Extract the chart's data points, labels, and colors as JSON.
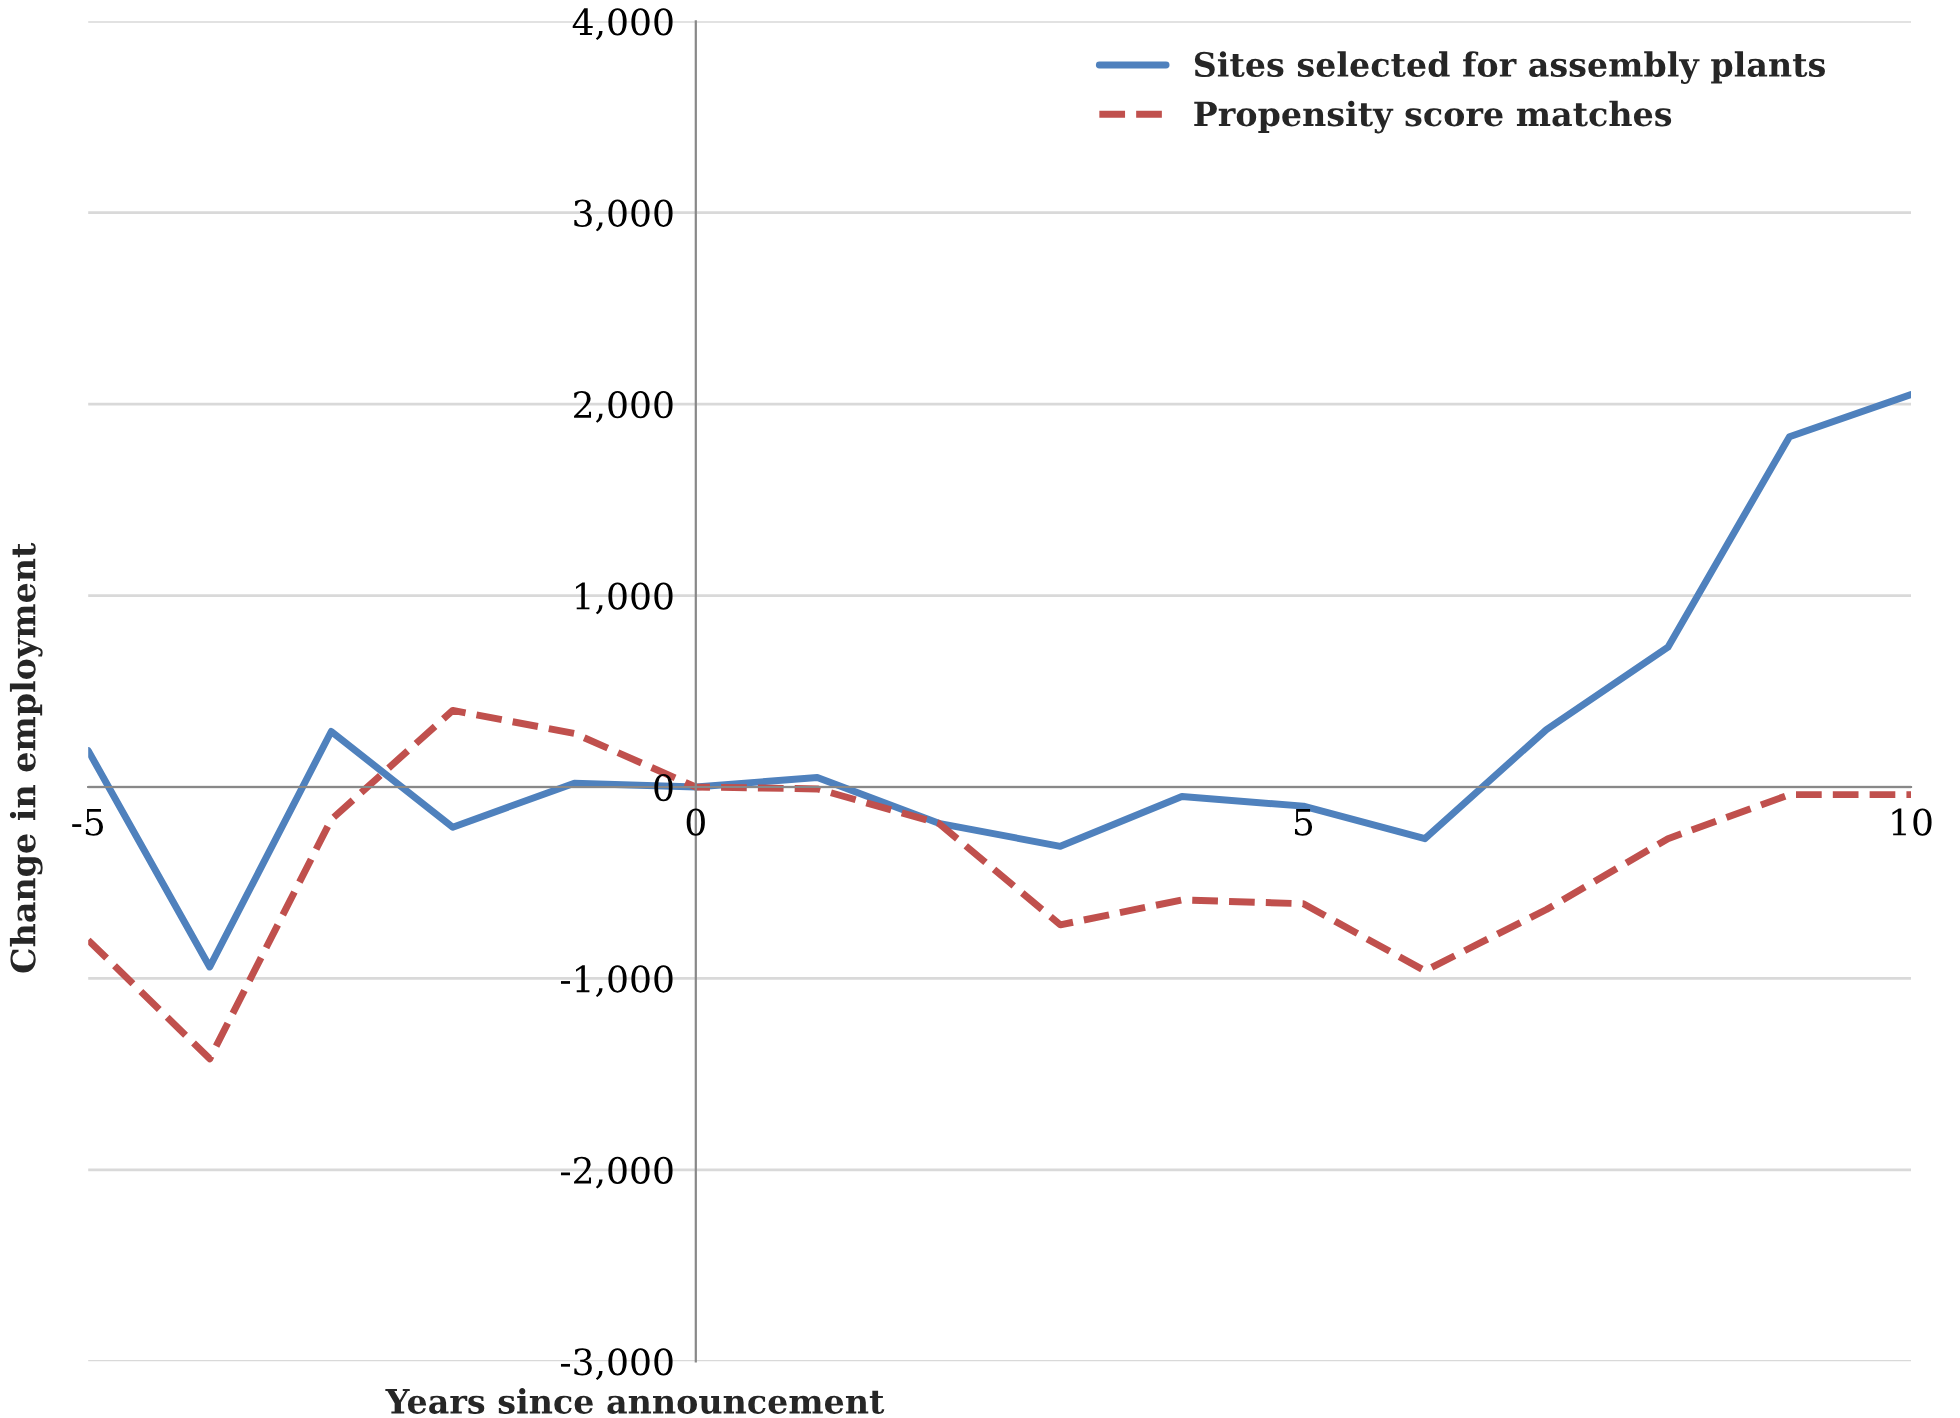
{
  "chart_data": {
    "type": "line",
    "xlabel": "Years since announcement",
    "ylabel": "Change in employment",
    "x": [
      -5,
      -4,
      -3,
      -2,
      -1,
      0,
      1,
      2,
      3,
      4,
      5,
      6,
      7,
      8,
      9,
      10
    ],
    "series": [
      {
        "name": "Sites selected for assembly plants",
        "color": "#4f81bd",
        "line_style": "solid",
        "values": [
          190,
          -940,
          290,
          -210,
          20,
          0,
          50,
          -190,
          -310,
          -50,
          -100,
          -270,
          300,
          730,
          1830,
          2050
        ]
      },
      {
        "name": "Propensity score matches",
        "color": "#c0504d",
        "line_style": "dashed",
        "values": [
          -800,
          -1420,
          -170,
          400,
          280,
          0,
          -10,
          -190,
          -720,
          -590,
          -610,
          -960,
          -640,
          -270,
          -40,
          -40
        ]
      }
    ],
    "xlim": [
      -5,
      10
    ],
    "xticks": [
      -5,
      0,
      5,
      10
    ],
    "ylim": [
      -3000,
      4000
    ],
    "yticks": [
      {
        "value": -3000,
        "label": "-3,000"
      },
      {
        "value": -2000,
        "label": "-2,000"
      },
      {
        "value": -1000,
        "label": "-1,000"
      },
      0,
      {
        "value": 1000,
        "label": "1,000"
      },
      {
        "value": 2000,
        "label": "2,000"
      },
      {
        "value": 3000,
        "label": "3,000"
      },
      {
        "value": 4000,
        "label": "4,000"
      }
    ],
    "grid": "y",
    "legend": "top right",
    "marker": "none"
  }
}
